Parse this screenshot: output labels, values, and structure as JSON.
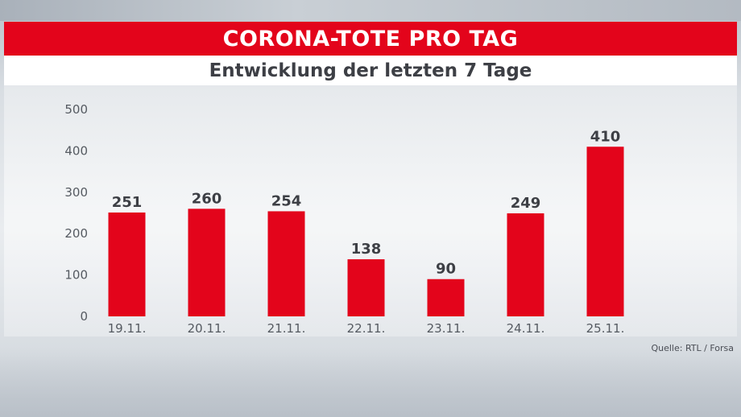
{
  "header": {
    "title": "CORONA-TOTE PRO TAG",
    "subtitle": "Entwicklung der letzten 7 Tage"
  },
  "source": "Quelle: RTL / Forsa",
  "colors": {
    "bar": "#e3041b",
    "title_bar": "#e3041b",
    "text": "#3d3f45",
    "axis_text": "#555a61"
  },
  "chart_data": {
    "type": "bar",
    "title": "CORONA-TOTE PRO TAG",
    "subtitle": "Entwicklung der letzten 7 Tage",
    "categories": [
      "19.11.",
      "20.11.",
      "21.11.",
      "22.11.",
      "23.11.",
      "24.11.",
      "25.11."
    ],
    "values": [
      251,
      260,
      254,
      138,
      90,
      249,
      410
    ],
    "xlabel": "",
    "ylabel": "",
    "ylim": [
      0,
      500
    ],
    "yticks": [
      0,
      100,
      200,
      300,
      400,
      500
    ],
    "grid": false,
    "legend": "none",
    "data_labels": true
  }
}
